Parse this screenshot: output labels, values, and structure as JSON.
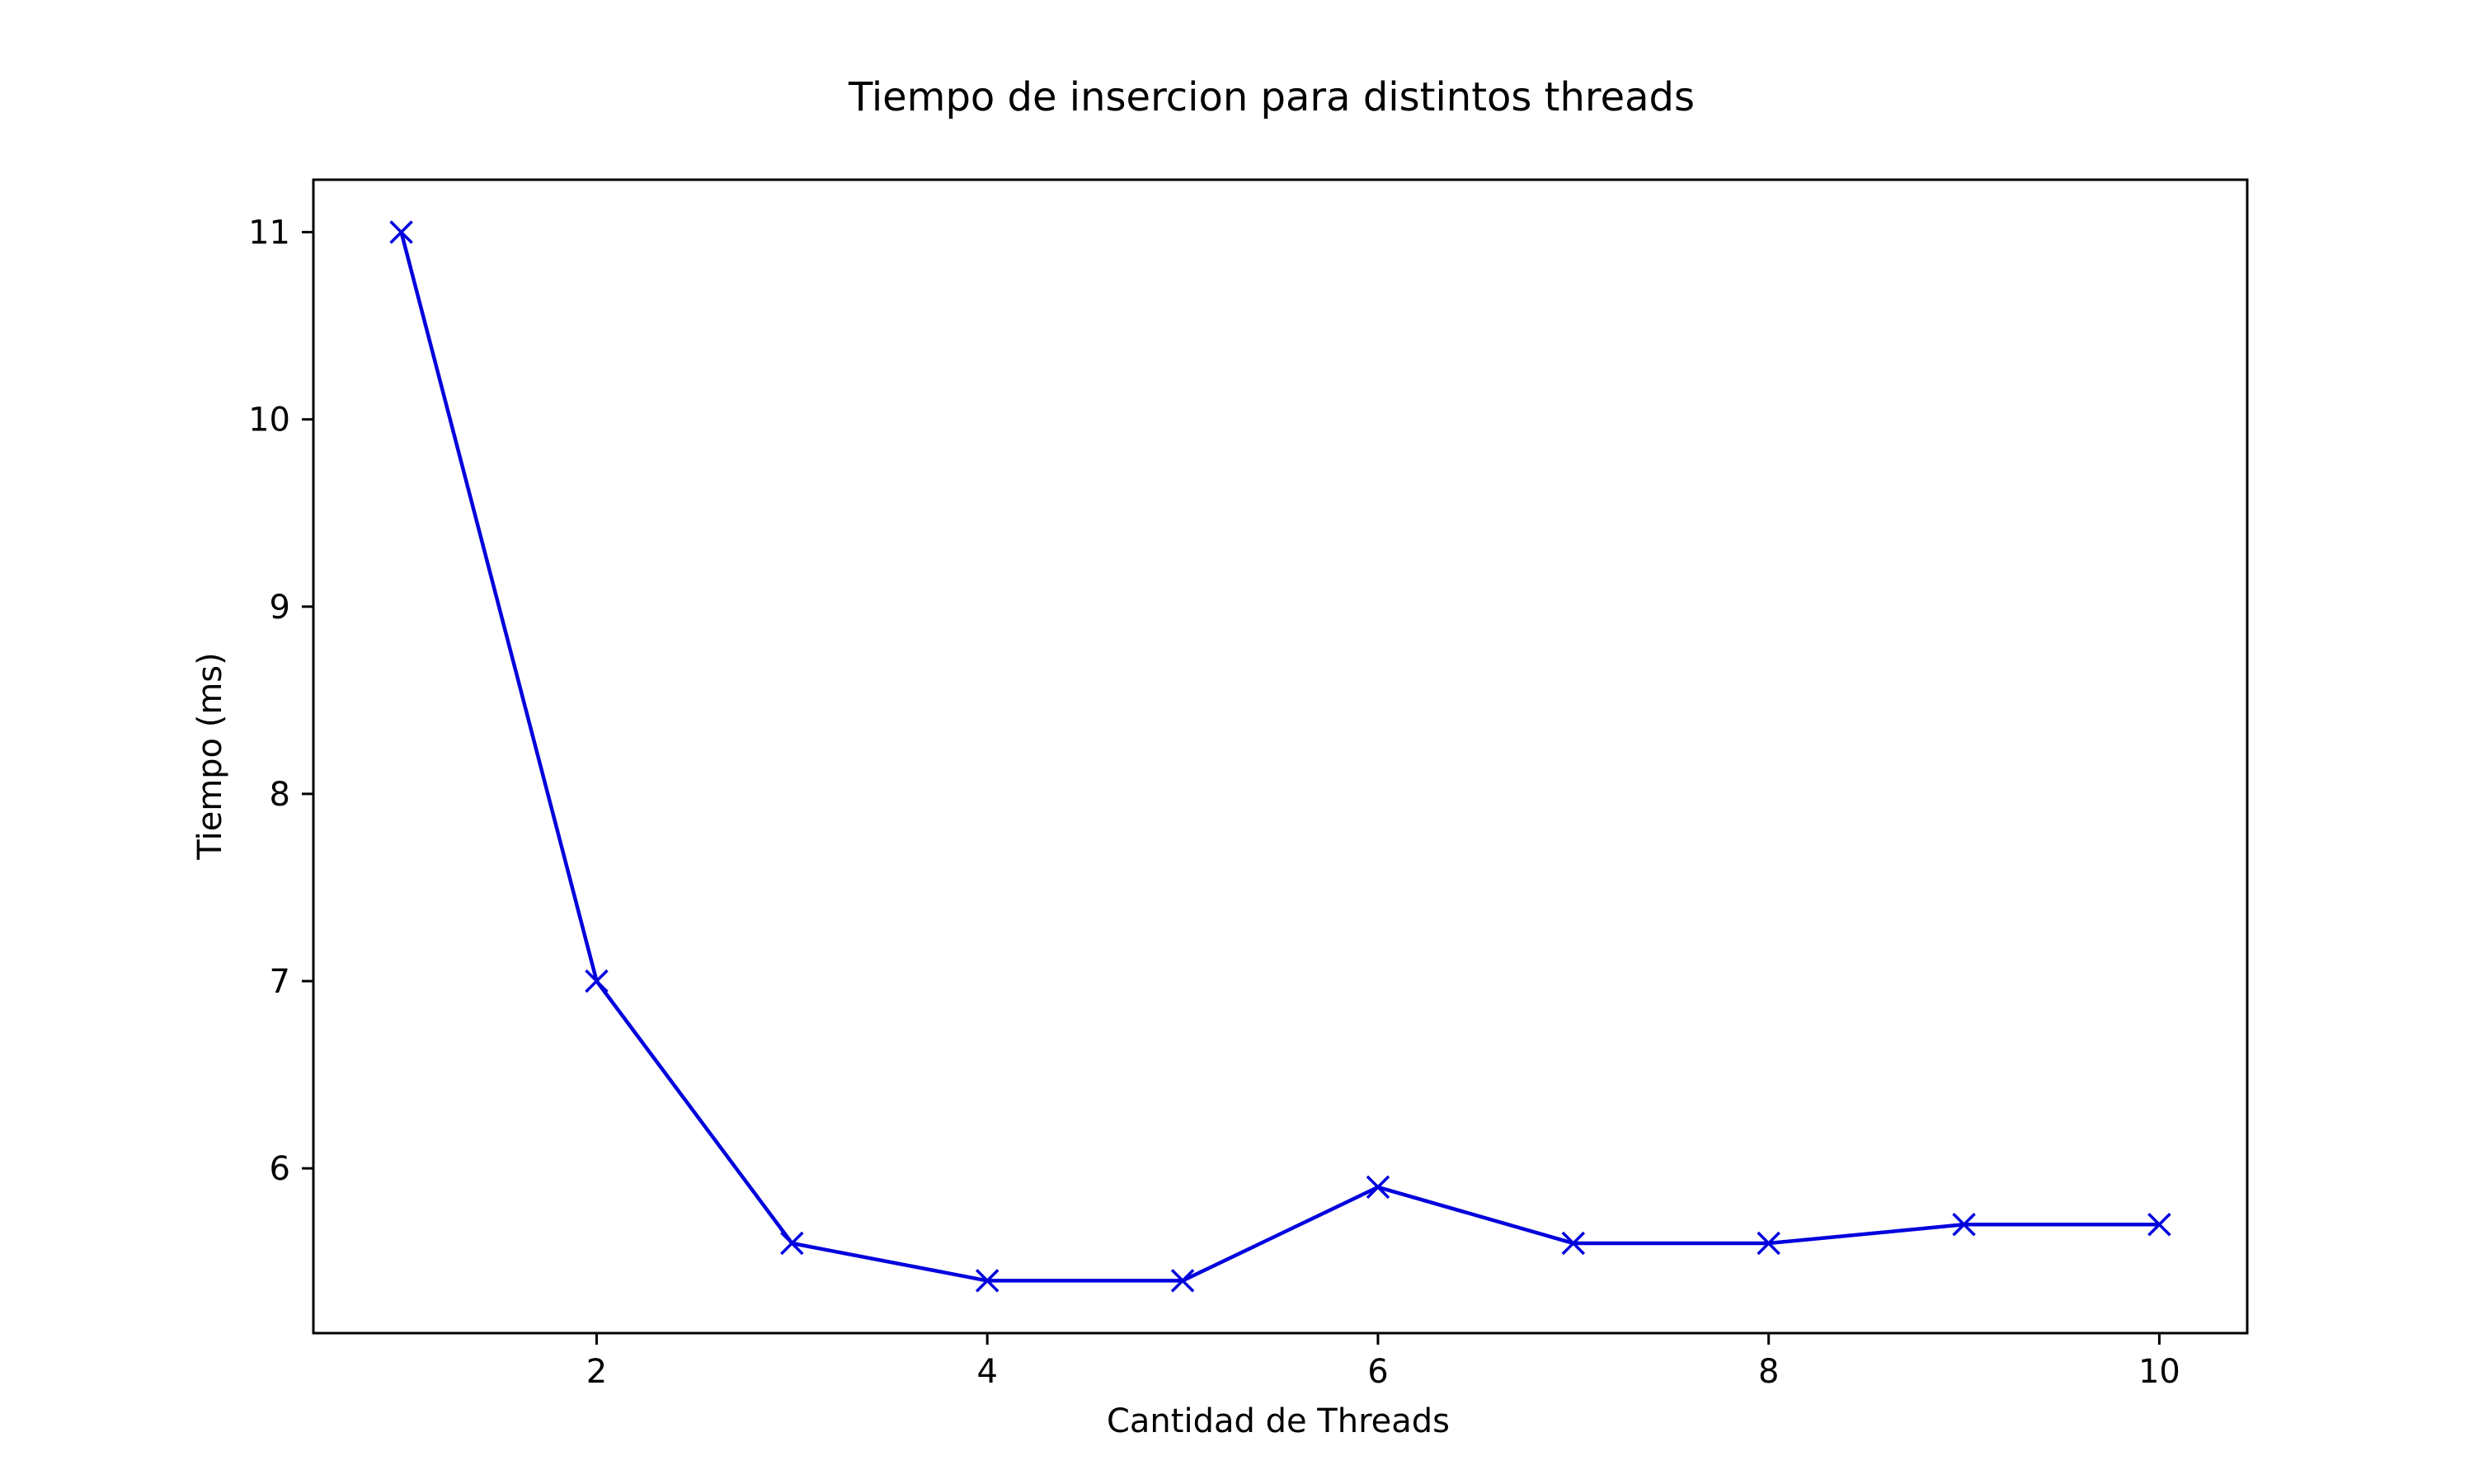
{
  "chart_data": {
    "type": "line",
    "title": "Tiempo de insercion para distintos threads",
    "xlabel": "Cantidad de Threads",
    "ylabel": "Tiempo (ms)",
    "x": [
      1,
      2,
      3,
      4,
      5,
      6,
      7,
      8,
      9,
      10
    ],
    "series": [
      {
        "values": [
          11.0,
          7.0,
          5.6,
          5.4,
          5.4,
          5.9,
          5.6,
          5.6,
          5.7,
          5.7
        ],
        "color": "#0000dd",
        "marker": "x"
      }
    ],
    "xlim": [
      0.55,
      10.45
    ],
    "ylim": [
      5.12,
      11.28
    ],
    "xticks": [
      2,
      4,
      6,
      8,
      10
    ],
    "yticks": [
      6,
      7,
      8,
      9,
      10,
      11
    ],
    "grid": false,
    "legend": "none"
  }
}
